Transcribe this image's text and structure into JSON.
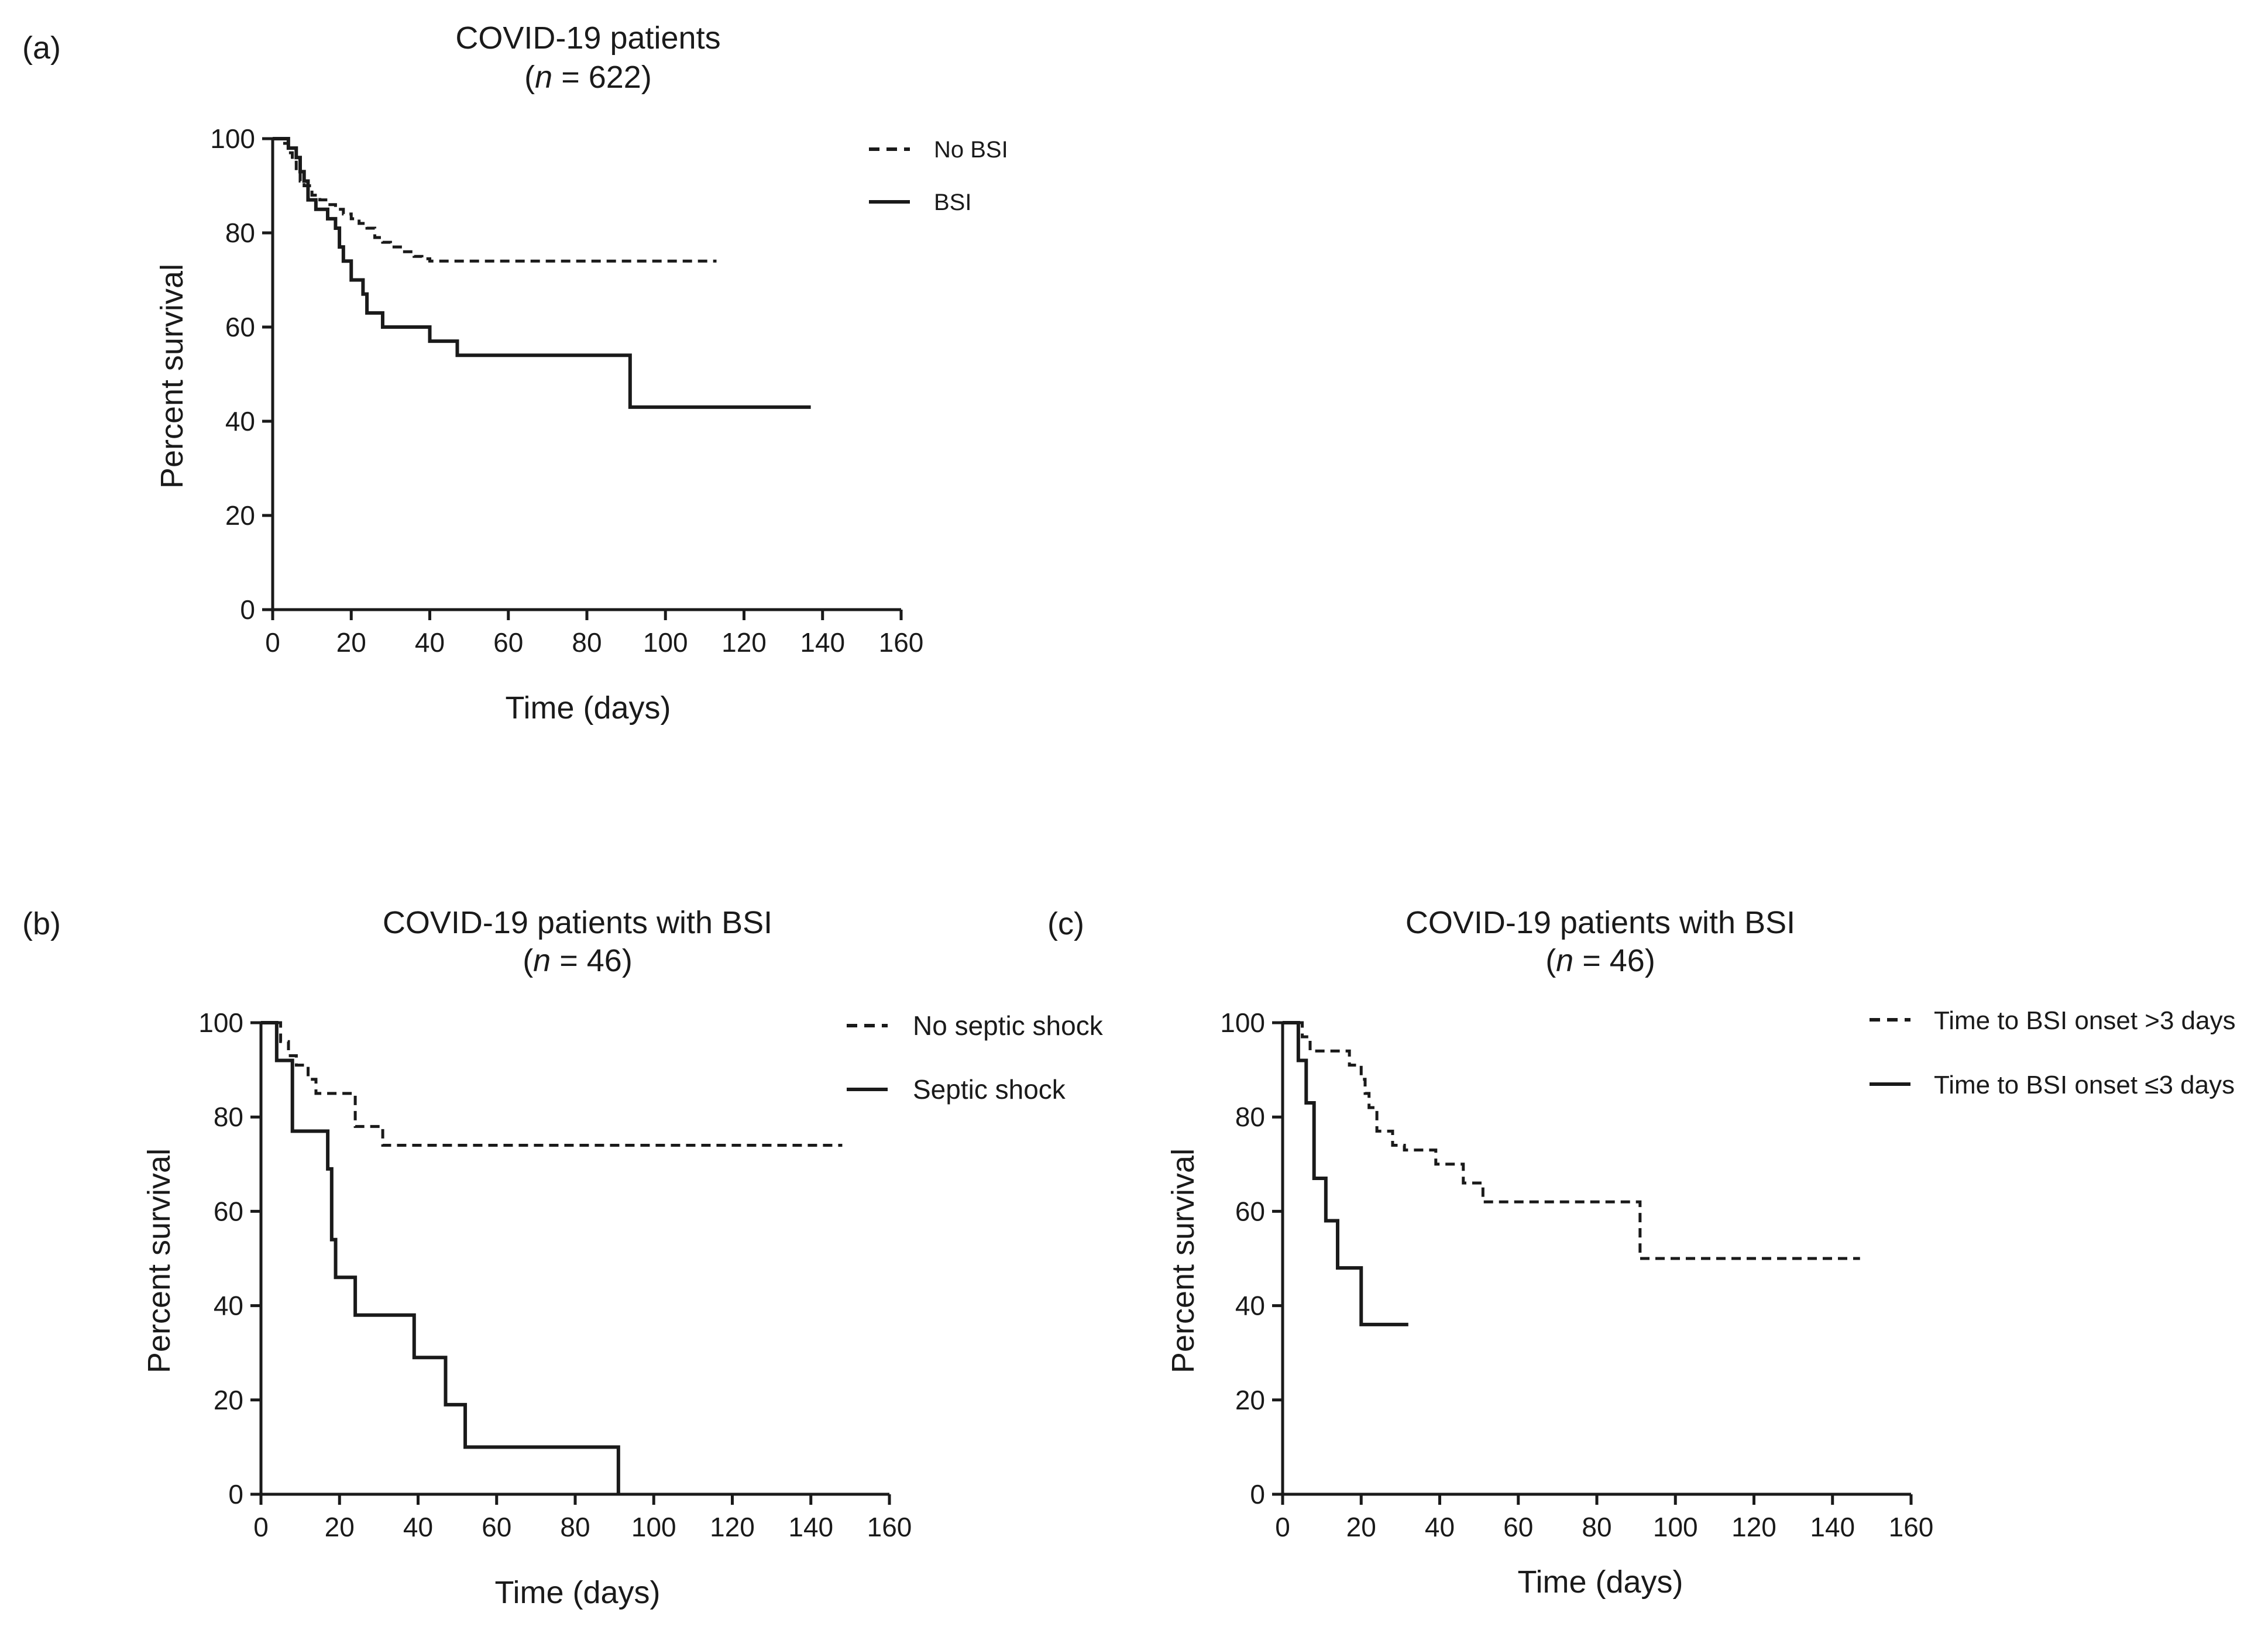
{
  "chart_data": [
    {
      "type": "line",
      "panel_label": "(a)",
      "title": "COVID-19 patients",
      "subtitle_prefix": "(",
      "subtitle_italic": "n",
      "subtitle_suffix": " = 622)",
      "xlabel": "Time (days)",
      "ylabel": "Percent survival",
      "xlim": [
        0,
        160
      ],
      "ylim": [
        0,
        100
      ],
      "xticks": [
        0,
        20,
        40,
        60,
        80,
        100,
        120,
        140,
        160
      ],
      "yticks": [
        0,
        20,
        40,
        60,
        80,
        100
      ],
      "grid": false,
      "legend_position": "top-right",
      "series": [
        {
          "name": "No BSI",
          "dash": true,
          "x": [
            0,
            2,
            4,
            5,
            6,
            7,
            8,
            10,
            12,
            14,
            16,
            18,
            20,
            22,
            24,
            26,
            28,
            30,
            33,
            36,
            38,
            40,
            113
          ],
          "y": [
            100,
            99,
            97,
            95,
            93,
            91,
            90,
            88,
            87,
            86,
            85,
            84,
            83,
            82,
            81,
            79,
            78,
            77,
            76,
            75,
            74.5,
            74,
            74
          ]
        },
        {
          "name": "BSI",
          "dash": false,
          "x": [
            0,
            4,
            6,
            7,
            8,
            9,
            11,
            14,
            16,
            17,
            18,
            20,
            23,
            24,
            28,
            39,
            40,
            47,
            91,
            137
          ],
          "y": [
            100,
            98,
            96,
            93,
            91,
            87,
            85,
            83,
            81,
            77,
            74,
            70,
            67,
            63,
            60,
            60,
            57,
            54,
            43,
            43
          ]
        }
      ]
    },
    {
      "type": "line",
      "panel_label": "(b)",
      "title": "COVID-19 patients with BSI",
      "subtitle_prefix": "(",
      "subtitle_italic": "n",
      "subtitle_suffix": " = 46)",
      "xlabel": "Time (days)",
      "ylabel": "Percent survival",
      "xlim": [
        0,
        160
      ],
      "ylim": [
        0,
        100
      ],
      "xticks": [
        0,
        20,
        40,
        60,
        80,
        100,
        120,
        140,
        160
      ],
      "yticks": [
        0,
        20,
        40,
        60,
        80,
        100
      ],
      "grid": false,
      "legend_position": "top-right",
      "series": [
        {
          "name": "No septic shock",
          "dash": true,
          "x": [
            0,
            5,
            7,
            9,
            12,
            14,
            18,
            24,
            31,
            148
          ],
          "y": [
            100,
            96,
            93,
            91,
            88,
            85,
            85,
            78,
            74,
            74
          ]
        },
        {
          "name": "Septic shock",
          "dash": false,
          "x": [
            0,
            4,
            8,
            17,
            18,
            19,
            21,
            24,
            39,
            46,
            47,
            52,
            91
          ],
          "y": [
            100,
            92,
            77,
            69,
            54,
            46,
            46,
            38,
            29,
            29,
            19,
            10,
            0
          ]
        }
      ]
    },
    {
      "type": "line",
      "panel_label": "(c)",
      "title": "COVID-19 patients with BSI",
      "subtitle_prefix": "(",
      "subtitle_italic": "n",
      "subtitle_suffix": " = 46)",
      "xlabel": "Time (days)",
      "ylabel": "Percent survival",
      "xlim": [
        0,
        160
      ],
      "ylim": [
        0,
        100
      ],
      "xticks": [
        0,
        20,
        40,
        60,
        80,
        100,
        120,
        140,
        160
      ],
      "yticks": [
        0,
        20,
        40,
        60,
        80,
        100
      ],
      "grid": false,
      "legend_position": "top-right",
      "series": [
        {
          "name": "Time to BSI onset >3 days",
          "dash": true,
          "x": [
            0,
            5,
            7,
            16,
            17,
            20,
            21,
            22,
            24,
            28,
            31,
            39,
            46,
            51,
            91,
            147
          ],
          "y": [
            100,
            97,
            94,
            94,
            91,
            88,
            85,
            82,
            77,
            74,
            73,
            70,
            66,
            62,
            50,
            50
          ]
        },
        {
          "name": "Time to BSI onset ≤3 days",
          "dash": false,
          "x": [
            0,
            4,
            6,
            8,
            11,
            14,
            19,
            20,
            32
          ],
          "y": [
            100,
            92,
            83,
            67,
            58,
            48,
            48,
            36,
            36
          ]
        }
      ]
    }
  ]
}
